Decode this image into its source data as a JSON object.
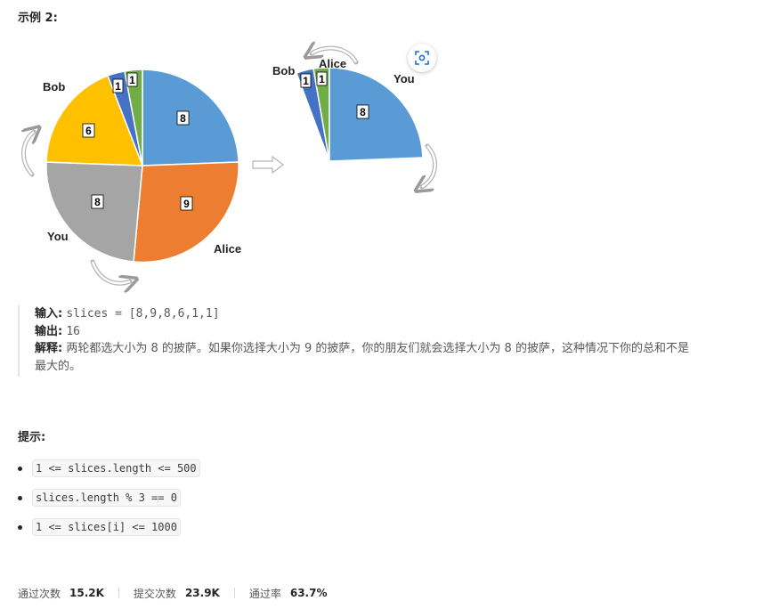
{
  "example": {
    "title": "示例 2:"
  },
  "figure": {
    "left_pizza": {
      "labels": {
        "bob": "Bob",
        "you": "You",
        "alice": "Alice"
      },
      "slices": [
        {
          "value": "8",
          "color": "#5b9bd5"
        },
        {
          "value": "9",
          "color": "#ed7d31"
        },
        {
          "value": "8",
          "color": "#a5a5a5"
        },
        {
          "value": "6",
          "color": "#ffc000"
        },
        {
          "value": "1",
          "color": "#4472c4"
        },
        {
          "value": "1",
          "color": "#70ad47"
        }
      ]
    },
    "right_pizza": {
      "labels": {
        "bob": "Bob",
        "alice": "Alice",
        "you": "You"
      },
      "slices": [
        {
          "value": "1",
          "color": "#4472c4"
        },
        {
          "value": "1",
          "color": "#70ad47"
        },
        {
          "value": "8",
          "color": "#5b9bd5"
        }
      ]
    },
    "scan_icon": "scan-icon"
  },
  "explanation": {
    "input_label": "输入:",
    "input_value": "slices = [8,9,8,6,1,1]",
    "output_label": "输出:",
    "output_value": "16",
    "explain_label": "解释:",
    "explain_line1": "两轮都选大小为  8  的披萨。如果你选择大小为  9  的披萨，你的朋友们就会选择大小为  8  的披萨，这种情况下你的总和不是",
    "explain_line2": "最大的。"
  },
  "hints": {
    "title": "提示:",
    "items": [
      "1 <= slices.length <= 500",
      "slices.length % 3 == 0",
      "1 <= slices[i] <= 1000"
    ]
  },
  "stats": {
    "accepted_label": "通过次数",
    "accepted_value": "15.2K",
    "submitted_label": "提交次数",
    "submitted_value": "23.9K",
    "rate_label": "通过率",
    "rate_value": "63.7%"
  }
}
